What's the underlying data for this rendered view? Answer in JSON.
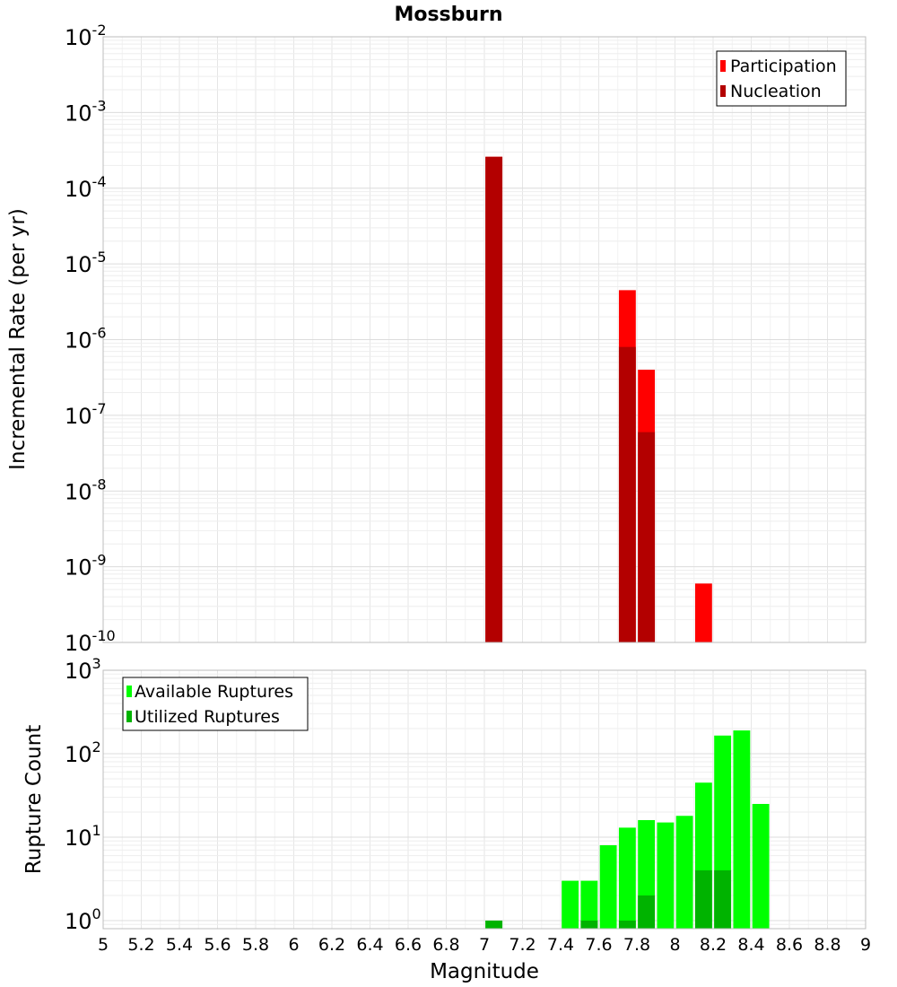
{
  "chart_data": [
    {
      "type": "bar",
      "title": "Mossburn",
      "ylabel": "Incremental Rate (per yr)",
      "xlabel": "",
      "yscale": "log",
      "ylim": [
        1e-10,
        0.01
      ],
      "xlim": [
        5,
        9
      ],
      "bin_width": 0.1,
      "yticks": [
        {
          "base": "10",
          "exp": "-10"
        },
        {
          "base": "10",
          "exp": "-9"
        },
        {
          "base": "10",
          "exp": "-8"
        },
        {
          "base": "10",
          "exp": "-7"
        },
        {
          "base": "10",
          "exp": "-6"
        },
        {
          "base": "10",
          "exp": "-5"
        },
        {
          "base": "10",
          "exp": "-4"
        },
        {
          "base": "10",
          "exp": "-3"
        },
        {
          "base": "10",
          "exp": "-2"
        }
      ],
      "legend_position": "top-right",
      "series": [
        {
          "name": "Participation",
          "color": "#ff0000",
          "x": [
            7.05,
            7.75,
            7.85,
            8.15
          ],
          "values": [
            0.00026,
            4.5e-06,
            4e-07,
            6e-10
          ]
        },
        {
          "name": "Nucleation",
          "color": "#b30000",
          "x": [
            7.05,
            7.75,
            7.85
          ],
          "values": [
            0.00026,
            8e-07,
            6e-08
          ]
        }
      ]
    },
    {
      "type": "bar",
      "title": "",
      "ylabel": "Rupture Count",
      "xlabel": "Magnitude",
      "yscale": "log",
      "ylim": [
        0.8,
        1000
      ],
      "xlim": [
        5,
        9
      ],
      "bin_width": 0.1,
      "yticks": [
        {
          "base": "10",
          "exp": "0"
        },
        {
          "base": "10",
          "exp": "1"
        },
        {
          "base": "10",
          "exp": "2"
        },
        {
          "base": "10",
          "exp": "3"
        }
      ],
      "xticks": [
        "5",
        "5.2",
        "5.4",
        "5.6",
        "5.8",
        "6",
        "6.2",
        "6.4",
        "6.6",
        "6.8",
        "7",
        "7.2",
        "7.4",
        "7.6",
        "7.8",
        "8",
        "8.2",
        "8.4",
        "8.6",
        "8.8",
        "9"
      ],
      "legend_position": "top-left",
      "series": [
        {
          "name": "Available Ruptures",
          "color": "#00ff00",
          "x": [
            7.05,
            7.45,
            7.55,
            7.65,
            7.75,
            7.85,
            7.95,
            8.05,
            8.15,
            8.25,
            8.35,
            8.45
          ],
          "values": [
            1,
            3,
            3,
            8,
            13,
            16,
            15,
            18,
            45,
            165,
            190,
            25
          ]
        },
        {
          "name": "Utilized Ruptures",
          "color": "#00b300",
          "x": [
            7.05,
            7.55,
            7.75,
            7.85,
            8.15,
            8.25
          ],
          "values": [
            1,
            1,
            1,
            2,
            4,
            4
          ]
        }
      ]
    }
  ]
}
